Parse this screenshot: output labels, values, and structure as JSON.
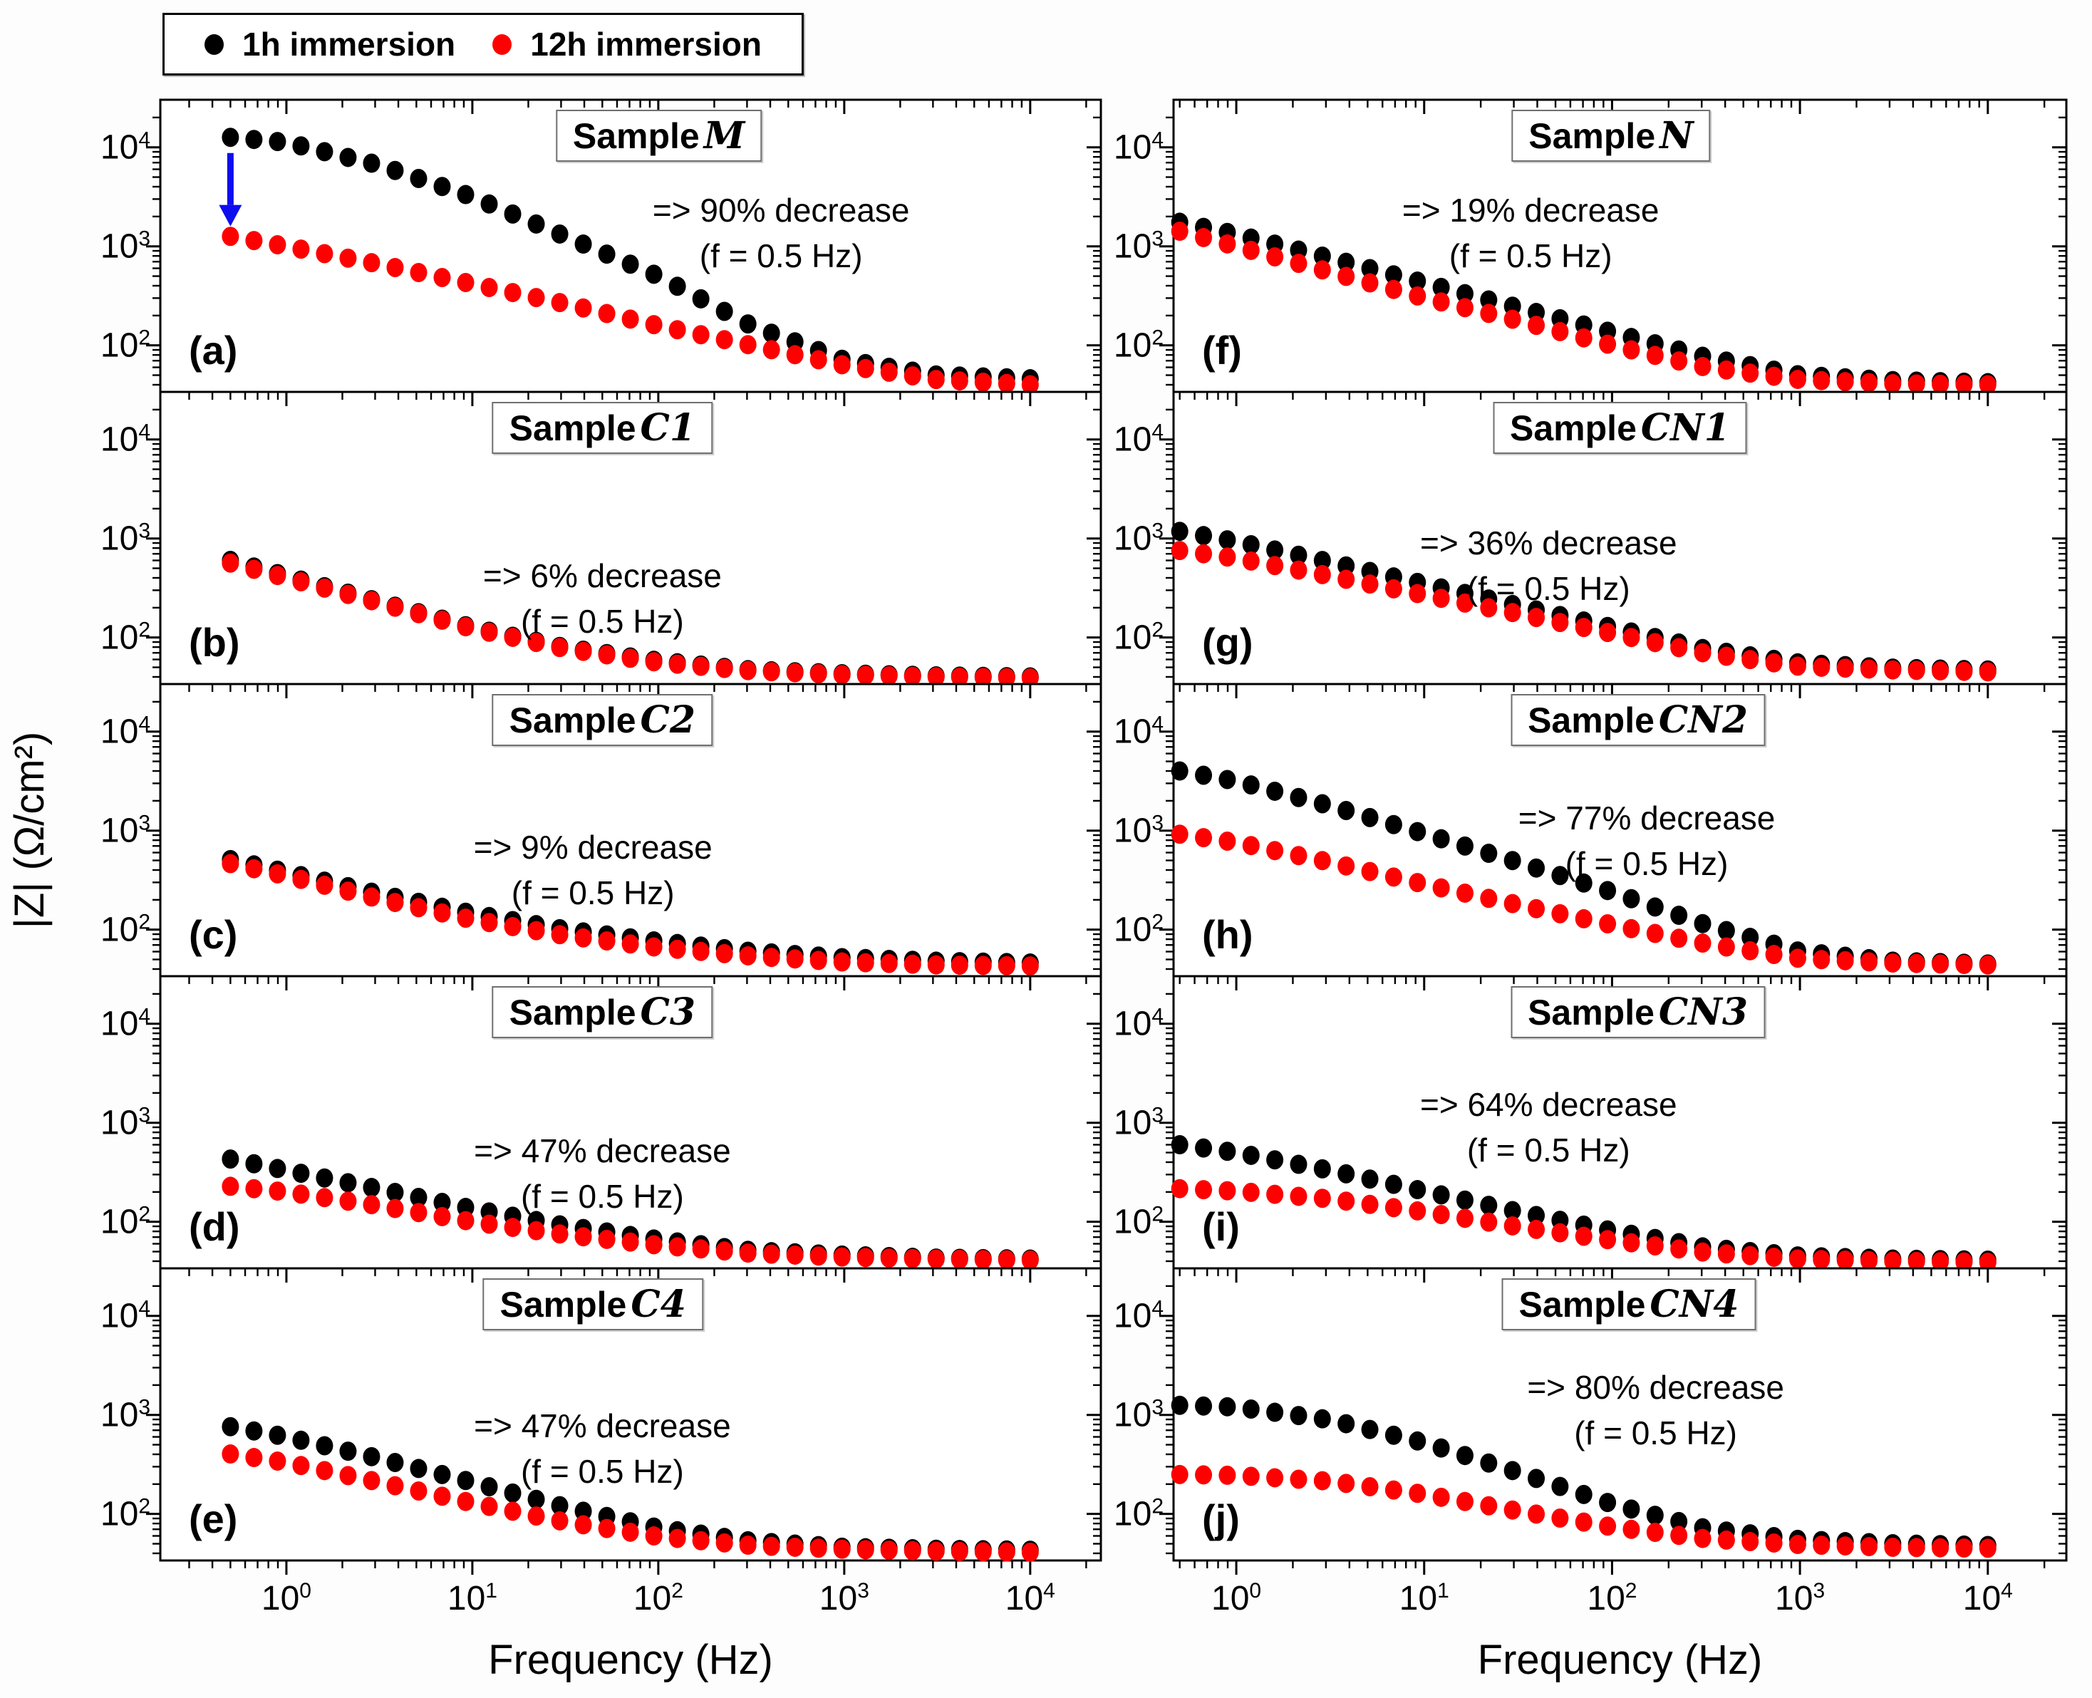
{
  "figure": {
    "legend": {
      "items": [
        {
          "label": "1h immersion",
          "color": "#000000"
        },
        {
          "label": "12h immersion",
          "color": "#ff0000"
        }
      ]
    },
    "y_axis_label": "|Z| (Ω/cm²)",
    "x_axis_label": "Frequency (Hz)",
    "colors": {
      "series_1h": "#000000",
      "series_12h": "#ff0000",
      "arrow": "#0d0df0"
    }
  },
  "chart_data": {
    "type": "scatter",
    "scale": "log-log",
    "xlabel": "Frequency (Hz)",
    "ylabel": "|Z| (Ω/cm²)",
    "x_tick_exponents": [
      0,
      1,
      2,
      3,
      4
    ],
    "y_tick_exponents": [
      2,
      3,
      4
    ],
    "x_range_hz": [
      0.5,
      10000
    ],
    "legend_position": "top-left-outside",
    "grid": false,
    "panels": [
      {
        "letter": "(a)",
        "title_prefix": "Sample",
        "title_symbol": "M",
        "annotation": [
          "=> 90% decrease",
          "(f = 0.5 Hz)"
        ],
        "arrow": {
          "x_hz": 0.5,
          "from_z": 12600,
          "to_z": 1700
        },
        "freq_hz": [
          0.5,
          1,
          3.16,
          10,
          31.6,
          100,
          316,
          1000,
          3162,
          10000
        ],
        "series": [
          {
            "name": "1h immersion",
            "color": "#000000",
            "z_ohm_cm2": [
              12600,
              11220,
              6610,
              3160,
              1260,
              500,
              158,
              71,
              50,
              46
            ]
          },
          {
            "name": "12h immersion",
            "color": "#ff0000",
            "z_ohm_cm2": [
              1260,
              1000,
              660,
              417,
              263,
              158,
              100,
              63,
              45,
              40
            ]
          }
        ]
      },
      {
        "letter": "(b)",
        "title_prefix": "Sample",
        "title_symbol": "C1",
        "annotation": [
          "=> 6% decrease",
          "(f = 0.5 Hz)"
        ],
        "freq_hz": [
          0.5,
          1,
          3.16,
          10,
          31.6,
          100,
          316,
          1000,
          3162,
          10000
        ],
        "series": [
          {
            "name": "1h immersion",
            "color": "#000000",
            "z_ohm_cm2": [
              600,
              417,
              229,
              126,
              79,
              58,
              47,
              43,
              41,
              40
            ]
          },
          {
            "name": "12h immersion",
            "color": "#ff0000",
            "z_ohm_cm2": [
              564,
              400,
              224,
              123,
              77,
              56,
              46,
              42,
              40,
              39
            ]
          }
        ]
      },
      {
        "letter": "(c)",
        "title_prefix": "Sample",
        "title_symbol": "C2",
        "annotation": [
          "=> 9% decrease",
          "(f = 0.5 Hz)"
        ],
        "freq_hz": [
          0.5,
          1,
          3.16,
          10,
          31.6,
          100,
          316,
          1000,
          3162,
          10000
        ],
        "series": [
          {
            "name": "1h immersion",
            "color": "#000000",
            "z_ohm_cm2": [
              510,
              380,
              229,
              145,
              100,
              76,
              60,
              52,
              48,
              46
            ]
          },
          {
            "name": "12h immersion",
            "color": "#ff0000",
            "z_ohm_cm2": [
              464,
              350,
              204,
              126,
              87,
              66,
              54,
              47,
              44,
              43
            ]
          }
        ]
      },
      {
        "letter": "(d)",
        "title_prefix": "Sample",
        "title_symbol": "C3",
        "annotation": [
          "=> 47% decrease",
          "(f = 0.5 Hz)"
        ],
        "freq_hz": [
          0.5,
          1,
          3.16,
          10,
          31.6,
          100,
          316,
          1000,
          3162,
          10000
        ],
        "series": [
          {
            "name": "1h immersion",
            "color": "#000000",
            "z_ohm_cm2": [
              430,
              331,
              214,
              135,
              91,
              66,
              51,
              46,
              43,
              42
            ]
          },
          {
            "name": "12h immersion",
            "color": "#ff0000",
            "z_ohm_cm2": [
              228,
              200,
              145,
              100,
              74,
              58,
              48,
              44,
              42,
              41
            ]
          }
        ]
      },
      {
        "letter": "(e)",
        "title_prefix": "Sample",
        "title_symbol": "C4",
        "annotation": [
          "=> 47% decrease",
          "(f = 0.5 Hz)"
        ],
        "freq_hz": [
          0.5,
          1,
          3.16,
          10,
          31.6,
          100,
          316,
          1000,
          3162,
          10000
        ],
        "series": [
          {
            "name": "1h immersion",
            "color": "#000000",
            "z_ohm_cm2": [
              760,
              600,
              363,
              209,
              117,
              72,
              53,
              46,
              44,
              43
            ]
          },
          {
            "name": "12h immersion",
            "color": "#ff0000",
            "z_ohm_cm2": [
              403,
              331,
              209,
              129,
              83,
              59,
              48,
              44,
              42,
              41
            ]
          }
        ]
      },
      {
        "letter": "(f)",
        "title_prefix": "Sample",
        "title_symbol": "N",
        "annotation": [
          "=> 19% decrease",
          "(f = 0.5 Hz)"
        ],
        "freq_hz": [
          0.5,
          1,
          3.16,
          10,
          31.6,
          100,
          316,
          1000,
          3162,
          10000
        ],
        "series": [
          {
            "name": "1h immersion",
            "color": "#000000",
            "z_ohm_cm2": [
              1750,
              1320,
              760,
              427,
              240,
              135,
              76,
              50,
              44,
              42
            ]
          },
          {
            "name": "12h immersion",
            "color": "#ff0000",
            "z_ohm_cm2": [
              1420,
              1000,
              550,
              302,
              178,
              100,
              60,
              45,
              41,
              40
            ]
          }
        ]
      },
      {
        "letter": "(g)",
        "title_prefix": "Sample",
        "title_symbol": "CN1",
        "annotation": [
          "=> 36% decrease",
          "(f = 0.5 Hz)"
        ],
        "freq_hz": [
          0.5,
          1,
          3.16,
          10,
          31.6,
          100,
          316,
          1000,
          3162,
          10000
        ],
        "series": [
          {
            "name": "1h immersion",
            "color": "#000000",
            "z_ohm_cm2": [
              1180,
              933,
              575,
              347,
              209,
              126,
              76,
              55,
              49,
              47
            ]
          },
          {
            "name": "12h immersion",
            "color": "#ff0000",
            "z_ohm_cm2": [
              755,
              631,
              417,
              269,
              174,
              110,
              69,
              51,
              47,
              45
            ]
          }
        ]
      },
      {
        "letter": "(h)",
        "title_prefix": "Sample",
        "title_symbol": "CN2",
        "annotation": [
          "=> 77% decrease",
          "(f = 0.5 Hz)"
        ],
        "freq_hz": [
          0.5,
          1,
          3.16,
          10,
          31.6,
          100,
          316,
          1000,
          3162,
          10000
        ],
        "series": [
          {
            "name": "1h immersion",
            "color": "#000000",
            "z_ohm_cm2": [
              4000,
              3160,
              1780,
              933,
              479,
              240,
              112,
              60,
              48,
              45
            ]
          },
          {
            "name": "12h immersion",
            "color": "#ff0000",
            "z_ohm_cm2": [
              920,
              759,
              479,
              288,
              178,
              112,
              72,
              51,
              46,
              44
            ]
          }
        ]
      },
      {
        "letter": "(i)",
        "title_prefix": "Sample",
        "title_symbol": "CN3",
        "annotation": [
          "=> 64% decrease",
          "(f = 0.5 Hz)"
        ],
        "freq_hz": [
          0.5,
          1,
          3.16,
          10,
          31.6,
          100,
          316,
          1000,
          3162,
          10000
        ],
        "series": [
          {
            "name": "1h immersion",
            "color": "#000000",
            "z_ohm_cm2": [
              600,
              500,
              331,
              204,
              126,
              81,
              55,
              45,
              42,
              41
            ]
          },
          {
            "name": "12h immersion",
            "color": "#ff0000",
            "z_ohm_cm2": [
              216,
              204,
              170,
              126,
              89,
              65,
              49,
              42,
              40,
              39
            ]
          }
        ]
      },
      {
        "letter": "(j)",
        "title_prefix": "Sample",
        "title_symbol": "CN4",
        "annotation": [
          "=> 80% decrease",
          "(f = 0.5 Hz)"
        ],
        "freq_hz": [
          0.5,
          1,
          3.16,
          10,
          31.6,
          100,
          316,
          1000,
          3162,
          10000
        ],
        "series": [
          {
            "name": "1h immersion",
            "color": "#000000",
            "z_ohm_cm2": [
              1250,
              1200,
              891,
              525,
              263,
              126,
              71,
              55,
              50,
              48
            ]
          },
          {
            "name": "12h immersion",
            "color": "#ff0000",
            "z_ohm_cm2": [
              250,
              245,
              214,
              158,
              107,
              74,
              56,
              49,
              46,
              45
            ]
          }
        ]
      }
    ]
  }
}
